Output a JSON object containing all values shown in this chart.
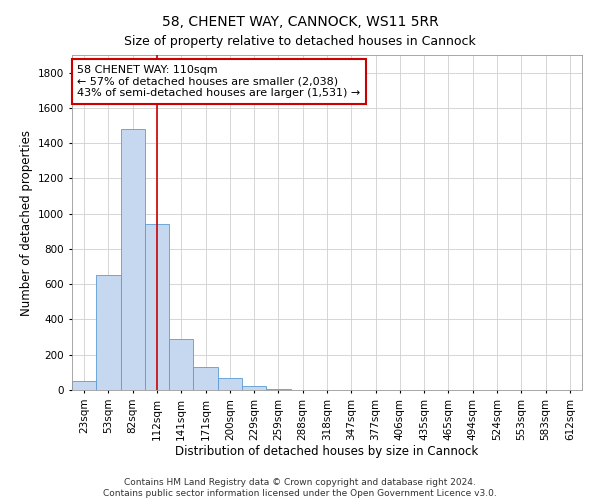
{
  "title": "58, CHENET WAY, CANNOCK, WS11 5RR",
  "subtitle": "Size of property relative to detached houses in Cannock",
  "xlabel": "Distribution of detached houses by size in Cannock",
  "ylabel": "Number of detached properties",
  "bar_labels": [
    "23sqm",
    "53sqm",
    "82sqm",
    "112sqm",
    "141sqm",
    "171sqm",
    "200sqm",
    "229sqm",
    "259sqm",
    "288sqm",
    "318sqm",
    "347sqm",
    "377sqm",
    "406sqm",
    "435sqm",
    "465sqm",
    "494sqm",
    "524sqm",
    "553sqm",
    "583sqm",
    "612sqm"
  ],
  "bar_values": [
    50,
    650,
    1480,
    940,
    290,
    130,
    70,
    20,
    5,
    2,
    1,
    0,
    0,
    0,
    0,
    0,
    0,
    0,
    0,
    0,
    0
  ],
  "bar_color": "#c5d8f0",
  "bar_edge_color": "#5b9bd5",
  "vline_x_index": 3,
  "vline_color": "#cc0000",
  "ylim": [
    0,
    1900
  ],
  "yticks": [
    0,
    200,
    400,
    600,
    800,
    1000,
    1200,
    1400,
    1600,
    1800
  ],
  "annotation_line1": "58 CHENET WAY: 110sqm",
  "annotation_line2": "← 57% of detached houses are smaller (2,038)",
  "annotation_line3": "43% of semi-detached houses are larger (1,531) →",
  "annotation_box_color": "#ffffff",
  "annotation_box_edge": "#cc0000",
  "footer_line1": "Contains HM Land Registry data © Crown copyright and database right 2024.",
  "footer_line2": "Contains public sector information licensed under the Open Government Licence v3.0.",
  "background_color": "#ffffff",
  "grid_color": "#d0d0d0",
  "title_fontsize": 10,
  "subtitle_fontsize": 9,
  "axis_label_fontsize": 8.5,
  "tick_fontsize": 7.5,
  "footer_fontsize": 6.5,
  "annotation_fontsize": 8
}
